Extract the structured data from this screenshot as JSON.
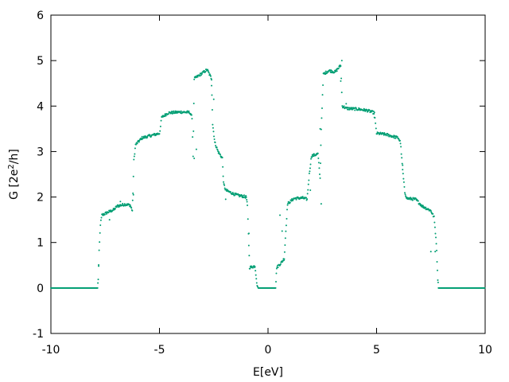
{
  "chart_data": {
    "type": "scatter",
    "title": "",
    "xlabel": "E[eV]",
    "ylabel": {
      "base": "G [2e",
      "sup": "2",
      "tail": "/h]"
    },
    "xlim": [
      -10,
      10
    ],
    "ylim": [
      -1,
      6
    ],
    "xticks": [
      -10,
      -5,
      0,
      5,
      10
    ],
    "yticks": [
      -1,
      0,
      1,
      2,
      3,
      4,
      5,
      6
    ],
    "grid": false,
    "color": "#009e73",
    "series": [
      {
        "name": "",
        "segments": [
          [
            -10,
            0
          ],
          [
            -7.85,
            0
          ],
          [
            -7.82,
            0.2
          ],
          [
            -7.78,
            0.8
          ],
          [
            -7.72,
            1.4
          ],
          [
            -7.65,
            1.6
          ],
          [
            -7.4,
            1.66
          ],
          [
            -7.1,
            1.72
          ],
          [
            -6.95,
            1.8
          ],
          [
            -6.6,
            1.84
          ],
          [
            -6.35,
            1.82
          ],
          [
            -6.25,
            1.7
          ],
          [
            -6.22,
            2.1
          ],
          [
            -6.18,
            2.8
          ],
          [
            -6.1,
            3.15
          ],
          [
            -5.8,
            3.3
          ],
          [
            -5.4,
            3.35
          ],
          [
            -5.0,
            3.4
          ],
          [
            -4.95,
            3.55
          ],
          [
            -4.9,
            3.75
          ],
          [
            -4.6,
            3.85
          ],
          [
            -4.0,
            3.87
          ],
          [
            -3.6,
            3.86
          ],
          [
            -3.5,
            3.75
          ],
          [
            -3.45,
            2.9
          ],
          [
            -3.4,
            4.6
          ],
          [
            -3.1,
            4.7
          ],
          [
            -2.8,
            4.8
          ],
          [
            -2.6,
            4.6
          ],
          [
            -2.55,
            3.6
          ],
          [
            -2.45,
            3.2
          ],
          [
            -2.3,
            3.0
          ],
          [
            -2.1,
            2.85
          ],
          [
            -2.05,
            2.3
          ],
          [
            -1.95,
            2.15
          ],
          [
            -1.5,
            2.05
          ],
          [
            -1.0,
            2.0
          ],
          [
            -0.95,
            1.8
          ],
          [
            -0.9,
            1.2
          ],
          [
            -0.85,
            0.45
          ],
          [
            -0.6,
            0.48
          ],
          [
            -0.5,
            0.05
          ],
          [
            -0.45,
            0
          ],
          [
            0.35,
            0
          ],
          [
            0.4,
            0.45
          ],
          [
            0.6,
            0.55
          ],
          [
            0.75,
            0.65
          ],
          [
            0.8,
            1.1
          ],
          [
            0.9,
            1.85
          ],
          [
            1.2,
            1.97
          ],
          [
            1.6,
            1.98
          ],
          [
            1.8,
            1.95
          ],
          [
            1.9,
            2.5
          ],
          [
            2.0,
            2.9
          ],
          [
            2.3,
            2.95
          ],
          [
            2.4,
            2.4
          ],
          [
            2.45,
            3.5
          ],
          [
            2.55,
            4.7
          ],
          [
            2.8,
            4.78
          ],
          [
            3.1,
            4.75
          ],
          [
            3.35,
            4.9
          ],
          [
            3.42,
            4.0
          ],
          [
            3.6,
            3.95
          ],
          [
            4.2,
            3.93
          ],
          [
            4.6,
            3.9
          ],
          [
            4.9,
            3.85
          ],
          [
            4.95,
            3.6
          ],
          [
            5.0,
            3.4
          ],
          [
            5.4,
            3.38
          ],
          [
            6.0,
            3.3
          ],
          [
            6.1,
            3.2
          ],
          [
            6.2,
            2.6
          ],
          [
            6.3,
            2.1
          ],
          [
            6.4,
            1.97
          ],
          [
            6.8,
            1.95
          ],
          [
            7.1,
            1.8
          ],
          [
            7.5,
            1.7
          ],
          [
            7.65,
            1.55
          ],
          [
            7.75,
            1.0
          ],
          [
            7.82,
            0.2
          ],
          [
            7.85,
            0
          ],
          [
            10,
            0
          ]
        ],
        "outliers": [
          [
            -7.3,
            1.5
          ],
          [
            -6.8,
            1.9
          ],
          [
            -3.4,
            2.85
          ],
          [
            -3.3,
            3.05
          ],
          [
            -2.6,
            4.45
          ],
          [
            -2.5,
            4.15
          ],
          [
            -1.95,
            1.95
          ],
          [
            -0.88,
            1.2
          ],
          [
            0.65,
            1.25
          ],
          [
            0.55,
            1.6
          ],
          [
            1.95,
            2.15
          ],
          [
            2.45,
            1.85
          ],
          [
            2.4,
            3.5
          ],
          [
            3.4,
            5.0
          ],
          [
            3.35,
            4.55
          ],
          [
            4.9,
            3.75
          ],
          [
            6.2,
            2.7
          ],
          [
            7.5,
            0.8
          ],
          [
            7.7,
            0.8
          ],
          [
            -7.8,
            0.48
          ],
          [
            -6.2,
            2.05
          ],
          [
            3.6,
            4.05
          ]
        ]
      }
    ]
  }
}
